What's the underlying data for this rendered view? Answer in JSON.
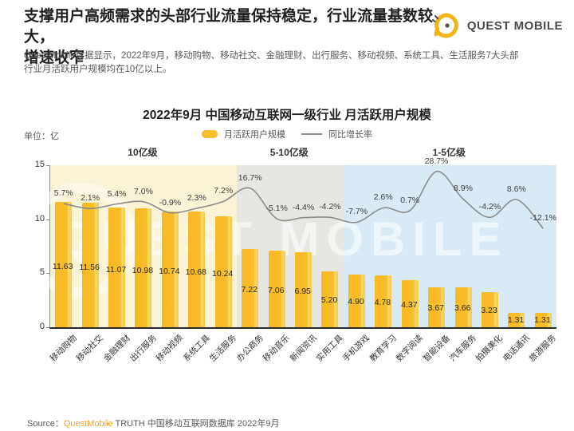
{
  "page": {
    "title": "支撑用户高频需求的头部行业流量保持稳定，行业流量基数较大，\n增速收窄",
    "subtitle": "QuestMobile数据显示，2022年9月，移动购物、移动社交、金融理财、出行服务、移动视频、系统工具、生活服务7大头部\n行业月活跃用户规模均在10亿以上。",
    "logo_text": "QUEST MOBILE",
    "watermark": "QUEST MOBILE",
    "source_prefix": "Source：",
    "source_brand": "QuestMobile",
    "source_suffix": " TRUTH 中国移动互联网数据库 2022年9月"
  },
  "chart_data": {
    "type": "bar",
    "title": "2022年9月 中国移动互联网一级行业 月活跃用户规模",
    "unit_label": "单位：亿",
    "ylabel": "",
    "xlabel": "",
    "ylim": [
      0,
      15
    ],
    "yticks": [
      0,
      5,
      10,
      15
    ],
    "grid": false,
    "legend_position": "top-center",
    "legend": [
      {
        "label": "月活跃用户规模",
        "type": "bar",
        "color": "#F9BE2B"
      },
      {
        "label": "同比增长率",
        "type": "line",
        "color": "#8C8C8C"
      }
    ],
    "zones": [
      {
        "label": "10亿级",
        "start_index": 0,
        "end_index": 7,
        "color": "#FBF3D5"
      },
      {
        "label": "5-10亿级",
        "start_index": 7,
        "end_index": 11,
        "color": "#E6E6E3"
      },
      {
        "label": "1-5亿级",
        "start_index": 11,
        "end_index": 19,
        "color": "#D8EAF6"
      }
    ],
    "categories": [
      "移动购物",
      "移动社交",
      "金融理财",
      "出行服务",
      "移动视频",
      "系统工具",
      "生活服务",
      "办公商务",
      "移动音乐",
      "新闻资讯",
      "实用工具",
      "手机游戏",
      "教育学习",
      "数字阅读",
      "智能设备",
      "汽车服务",
      "拍摄美化",
      "电话通讯",
      "旅游服务"
    ],
    "series": [
      {
        "name": "月活跃用户规模",
        "unit": "亿",
        "values": [
          11.63,
          11.56,
          11.07,
          10.98,
          10.74,
          10.68,
          10.24,
          7.22,
          7.06,
          6.95,
          5.2,
          4.9,
          4.78,
          4.37,
          3.67,
          3.66,
          3.23,
          1.31,
          1.31
        ],
        "labels": [
          "11.63",
          "11.56",
          "11.07",
          "10.98",
          "10.74",
          "10.68",
          "10.24",
          "7.22",
          "7.06",
          "6.95",
          "5.20",
          "4.90",
          "4.78",
          "4.37",
          "3.67",
          "3.66",
          "3.23",
          "1.31",
          "1.31"
        ]
      },
      {
        "name": "同比增长率",
        "unit": "%",
        "values": [
          5.7,
          2.1,
          5.4,
          7.0,
          -0.9,
          2.3,
          7.2,
          16.7,
          -5.1,
          -4.4,
          -4.2,
          -7.7,
          2.6,
          0.7,
          28.7,
          8.9,
          -4.2,
          8.6,
          -12.1
        ],
        "labels": [
          "5.7%",
          "2.1%",
          "5.4%",
          "7.0%",
          "-0.9%",
          "2.3%",
          "7.2%",
          "16.7%",
          "-5.1%",
          "-4.4%",
          "-4.2%",
          "-7.7%",
          "2.6%",
          "0.7%",
          "28.7%",
          "8.9%",
          "-4.2%",
          "8.6%",
          "-12.1%"
        ]
      }
    ],
    "bar_color": "#F9BE2B",
    "line_color": "#8C8C8C"
  }
}
